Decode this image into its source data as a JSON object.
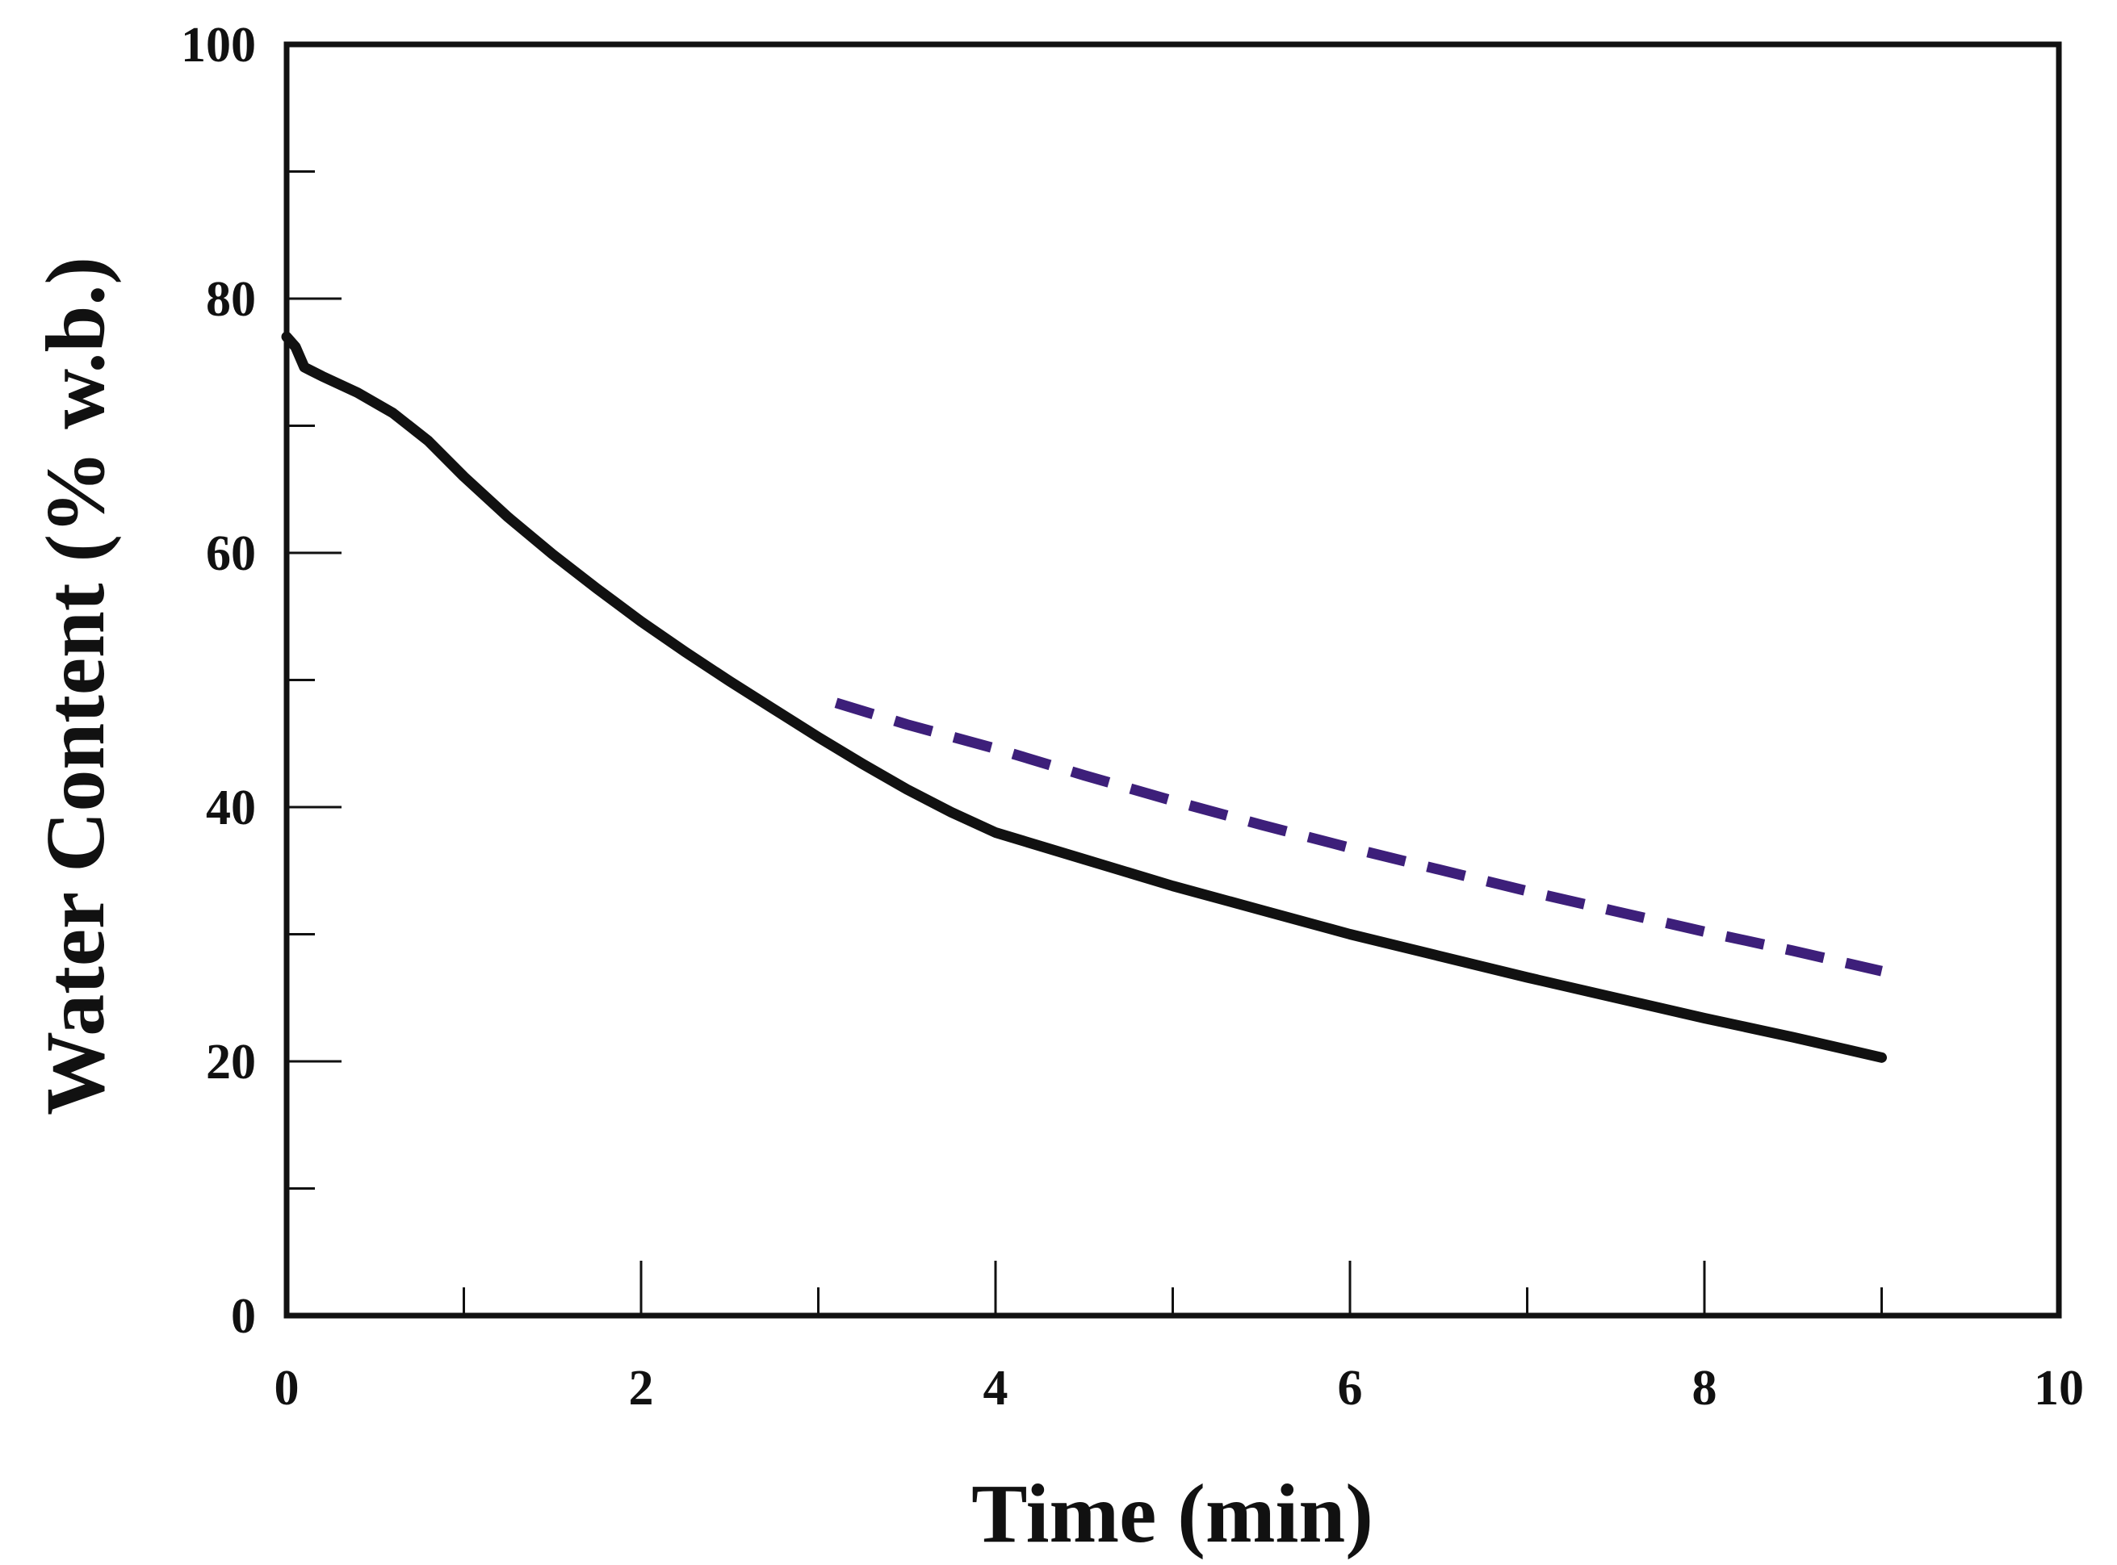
{
  "chart_data": {
    "type": "line",
    "title": "",
    "xlabel": "Time (min)",
    "ylabel": "Water Content (% w.b.)",
    "xlim": [
      0,
      10
    ],
    "ylim": [
      0,
      100
    ],
    "x_ticks": [
      0,
      2,
      4,
      6,
      8,
      10
    ],
    "x_tick_labels": [
      "0",
      "2",
      "4",
      "6",
      "8",
      "10"
    ],
    "x_minor_ticks": [
      1,
      3,
      5,
      7,
      9
    ],
    "y_ticks": [
      0,
      20,
      40,
      60,
      80,
      100
    ],
    "y_tick_labels": [
      "0",
      "20",
      "40",
      "60",
      "80",
      "100"
    ],
    "y_minor_ticks": [
      10,
      30,
      50,
      70,
      90
    ],
    "grid": false,
    "legend": "none",
    "series": [
      {
        "style": "solid",
        "color": "#111111",
        "x": [
          0,
          0.05,
          0.1,
          0.2,
          0.4,
          0.6,
          0.8,
          1.0,
          1.25,
          1.5,
          1.75,
          2.0,
          2.25,
          2.5,
          2.75,
          3.0,
          3.25,
          3.5,
          3.75,
          4.0,
          4.5,
          5.0,
          5.5,
          6.0,
          6.5,
          7.0,
          7.5,
          8.0,
          8.5,
          9.0
        ],
        "y": [
          77.0,
          76.2,
          74.6,
          73.9,
          72.6,
          71.0,
          68.8,
          66.0,
          62.8,
          59.9,
          57.2,
          54.6,
          52.2,
          49.9,
          47.7,
          45.5,
          43.4,
          41.4,
          39.6,
          38.0,
          35.9,
          33.8,
          31.9,
          30.0,
          28.3,
          26.6,
          25.0,
          23.4,
          21.9,
          20.3
        ]
      },
      {
        "style": "dashed",
        "color": "#3d1f7a",
        "x": [
          3.1,
          3.5,
          4.0,
          4.5,
          5.0,
          5.5,
          6.0,
          6.5,
          7.0,
          7.5,
          8.0,
          8.5,
          9.0
        ],
        "y": [
          48.2,
          46.5,
          44.6,
          42.5,
          40.5,
          38.6,
          36.8,
          35.1,
          33.4,
          31.8,
          30.2,
          28.7,
          27.1
        ]
      }
    ]
  },
  "colors": {
    "axis": "#111111",
    "background": "#ffffff"
  }
}
